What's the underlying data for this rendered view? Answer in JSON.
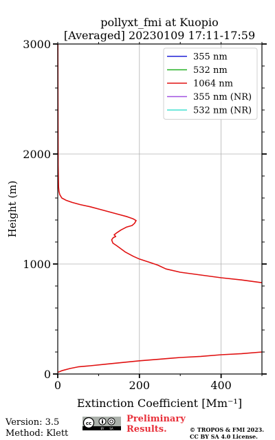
{
  "chart_data": {
    "type": "line",
    "title": "pollyxt_fmi at Kuopio",
    "subtitle": "[Averaged] 20230109 17:11-17:59",
    "xlabel": "Extinction Coefficient [Mm⁻¹]",
    "ylabel": "Height (m)",
    "xlim": [
      0,
      500
    ],
    "ylim": [
      0,
      3000
    ],
    "xticks": [
      "0",
      "200",
      "400"
    ],
    "yticks": [
      "0",
      "1000",
      "2000",
      "3000"
    ],
    "grid": true,
    "legend_position": "top-right",
    "legend": [
      {
        "label": "355 nm",
        "color": "#1f1fd6"
      },
      {
        "label": "532 nm",
        "color": "#22b022"
      },
      {
        "label": "1064 nm",
        "color": "#e01010"
      },
      {
        "label": "355 nm (NR)",
        "color": "#a050e0"
      },
      {
        "label": "532 nm (NR)",
        "color": "#40e0d0"
      }
    ],
    "series": [
      {
        "name": "1064 nm",
        "color": "#e01010",
        "segments": [
          [
            [
              0,
              15
            ],
            [
              10,
              30
            ],
            [
              30,
              50
            ],
            [
              50,
              65
            ],
            [
              80,
              75
            ],
            [
              120,
              90
            ],
            [
              160,
              105
            ],
            [
              200,
              120
            ],
            [
              250,
              135
            ],
            [
              300,
              150
            ],
            [
              350,
              160
            ],
            [
              400,
              175
            ],
            [
              450,
              185
            ],
            [
              500,
              200
            ]
          ],
          [
            [
              500,
              830
            ],
            [
              450,
              855
            ],
            [
              400,
              875
            ],
            [
              350,
              900
            ],
            [
              300,
              925
            ],
            [
              265,
              955
            ],
            [
              245,
              990
            ],
            [
              225,
              1015
            ],
            [
              200,
              1045
            ],
            [
              185,
              1070
            ],
            [
              165,
              1110
            ],
            [
              145,
              1165
            ],
            [
              135,
              1190
            ],
            [
              132,
              1220
            ],
            [
              136,
              1240
            ],
            [
              142,
              1250
            ],
            [
              138,
              1265
            ],
            [
              145,
              1285
            ],
            [
              155,
              1310
            ],
            [
              168,
              1335
            ],
            [
              182,
              1350
            ],
            [
              188,
              1370
            ],
            [
              192,
              1395
            ],
            [
              185,
              1410
            ],
            [
              170,
              1430
            ],
            [
              150,
              1450
            ],
            [
              125,
              1475
            ],
            [
              100,
              1500
            ],
            [
              80,
              1520
            ],
            [
              55,
              1540
            ],
            [
              35,
              1560
            ],
            [
              20,
              1580
            ],
            [
              10,
              1600
            ],
            [
              5,
              1630
            ],
            [
              3,
              1660
            ],
            [
              2,
              1700
            ],
            [
              1.5,
              1800
            ],
            [
              1,
              1900
            ],
            [
              1,
              2000
            ],
            [
              0.8,
              2200
            ],
            [
              0.5,
              2600
            ],
            [
              0.4,
              3000
            ]
          ]
        ]
      }
    ]
  },
  "footer": {
    "version": "Version: 3.5",
    "method": "Method: Klett",
    "license_badge": "cc-by-sa-badge",
    "preliminary_line1": "Preliminary",
    "preliminary_line2": "Results.",
    "copyright_line1": "© TROPOS & FMI 2023.",
    "copyright_line2": "CC BY SA 4.0 License."
  }
}
